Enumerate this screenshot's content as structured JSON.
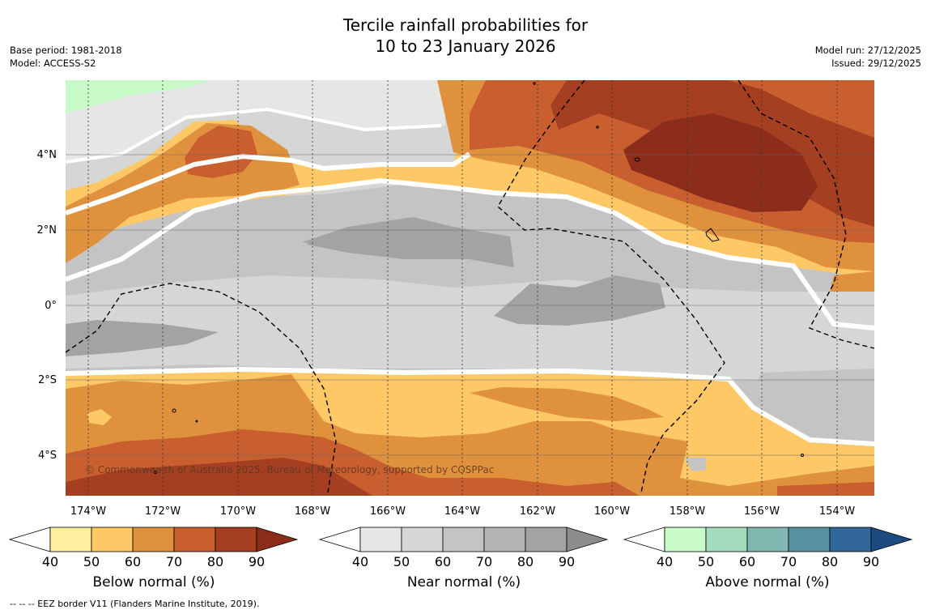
{
  "header": {
    "title_line1": "Tercile rainfall probabilities for",
    "title_line2": "10 to 23 January 2026",
    "base_period": "Base period: 1981-2018",
    "model": "Model: ACCESS-S2",
    "model_run": "Model run: 27/12/2025",
    "issued": "Issued: 29/12/2025"
  },
  "map": {
    "copyright": "© Commonwealth of Australia 2025, Bureau of Meteorology, supported by COSPPac",
    "lat_labels": [
      "4°N",
      "2°N",
      "0°",
      "2°S",
      "4°S"
    ],
    "lon_labels": [
      "174°W",
      "172°W",
      "170°W",
      "168°W",
      "166°W",
      "164°W",
      "162°W",
      "160°W",
      "158°W",
      "156°W",
      "154°W"
    ]
  },
  "colorbars": [
    {
      "label": "Below normal (%)",
      "ticks": [
        "40",
        "50",
        "60",
        "70",
        "80",
        "90"
      ],
      "colors": [
        "#ffeea0",
        "#fdc865",
        "#e0913e",
        "#c95e2e",
        "#a43f22",
        "#8c2d1b"
      ]
    },
    {
      "label": "Near normal (%)",
      "ticks": [
        "40",
        "50",
        "60",
        "70",
        "80",
        "90"
      ],
      "colors": [
        "#e6e6e6",
        "#d6d6d6",
        "#c4c4c4",
        "#b4b4b4",
        "#a3a3a3",
        "#8c8c8c"
      ]
    },
    {
      "label": "Above normal (%)",
      "ticks": [
        "40",
        "50",
        "60",
        "70",
        "80",
        "90"
      ],
      "colors": [
        "#c8fbc8",
        "#a3dbbc",
        "#80b7b0",
        "#5a92a2",
        "#326799",
        "#1b4b80"
      ]
    }
  ],
  "footer": {
    "eez_note": "--  --  -- EEZ border V11 (Flanders Marine Institute, 2019)."
  }
}
